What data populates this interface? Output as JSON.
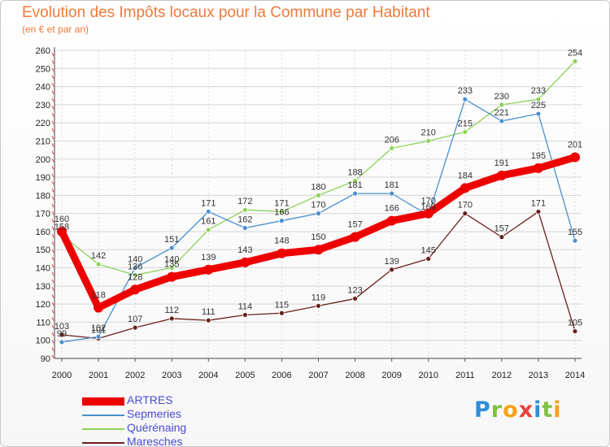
{
  "chart_data": {
    "type": "line",
    "title": "Evolution des Impôts locaux pour la Commune par Habitant",
    "subtitle": "(en € et par an)",
    "x": [
      2000,
      2001,
      2002,
      2003,
      2004,
      2005,
      2006,
      2007,
      2008,
      2009,
      2010,
      2011,
      2012,
      2013,
      2014
    ],
    "ylim": [
      90,
      260
    ],
    "yticks": [
      90,
      100,
      110,
      120,
      130,
      140,
      150,
      160,
      170,
      180,
      190,
      200,
      210,
      220,
      230,
      240,
      250,
      260
    ],
    "grid": true,
    "legend_position": "bottom-left",
    "series": [
      {
        "name": "Maresches",
        "color": "#6b1f1f",
        "values": [
          103,
          101,
          107,
          112,
          111,
          114,
          115,
          119,
          123,
          139,
          145,
          170,
          157,
          171,
          105
        ]
      },
      {
        "name": "Quérénaing",
        "color": "#8ed35a",
        "values": [
          158,
          142,
          136,
          140,
          161,
          172,
          171,
          180,
          188,
          206,
          210,
          215,
          230,
          233,
          254
        ]
      },
      {
        "name": "Sepmeries",
        "color": "#4a8fcf",
        "values": [
          99,
          102,
          140,
          151,
          171,
          162,
          166,
          170,
          181,
          181,
          169,
          233,
          221,
          225,
          155
        ]
      },
      {
        "name": "ARTRES",
        "color": "#ee0000",
        "values": [
          160,
          118,
          128,
          135,
          139,
          143,
          148,
          150,
          157,
          166,
          170,
          184,
          191,
          195,
          201
        ]
      }
    ]
  },
  "legend": [
    {
      "name": "ARTRES",
      "color": "#ee0000"
    },
    {
      "name": "Sepmeries",
      "color": "#4a8fcf"
    },
    {
      "name": "Quérénaing",
      "color": "#8ed35a"
    },
    {
      "name": "Maresches",
      "color": "#6b1f1f"
    }
  ],
  "brand": {
    "letters": [
      "P",
      "r",
      "o",
      "x",
      "i",
      "t",
      "i"
    ],
    "colors": [
      "#2e8fd8",
      "#7fc242",
      "#f7a21b",
      "#e8423c",
      "#2e8fd8",
      "#7fc242",
      "#f7a21b"
    ]
  }
}
